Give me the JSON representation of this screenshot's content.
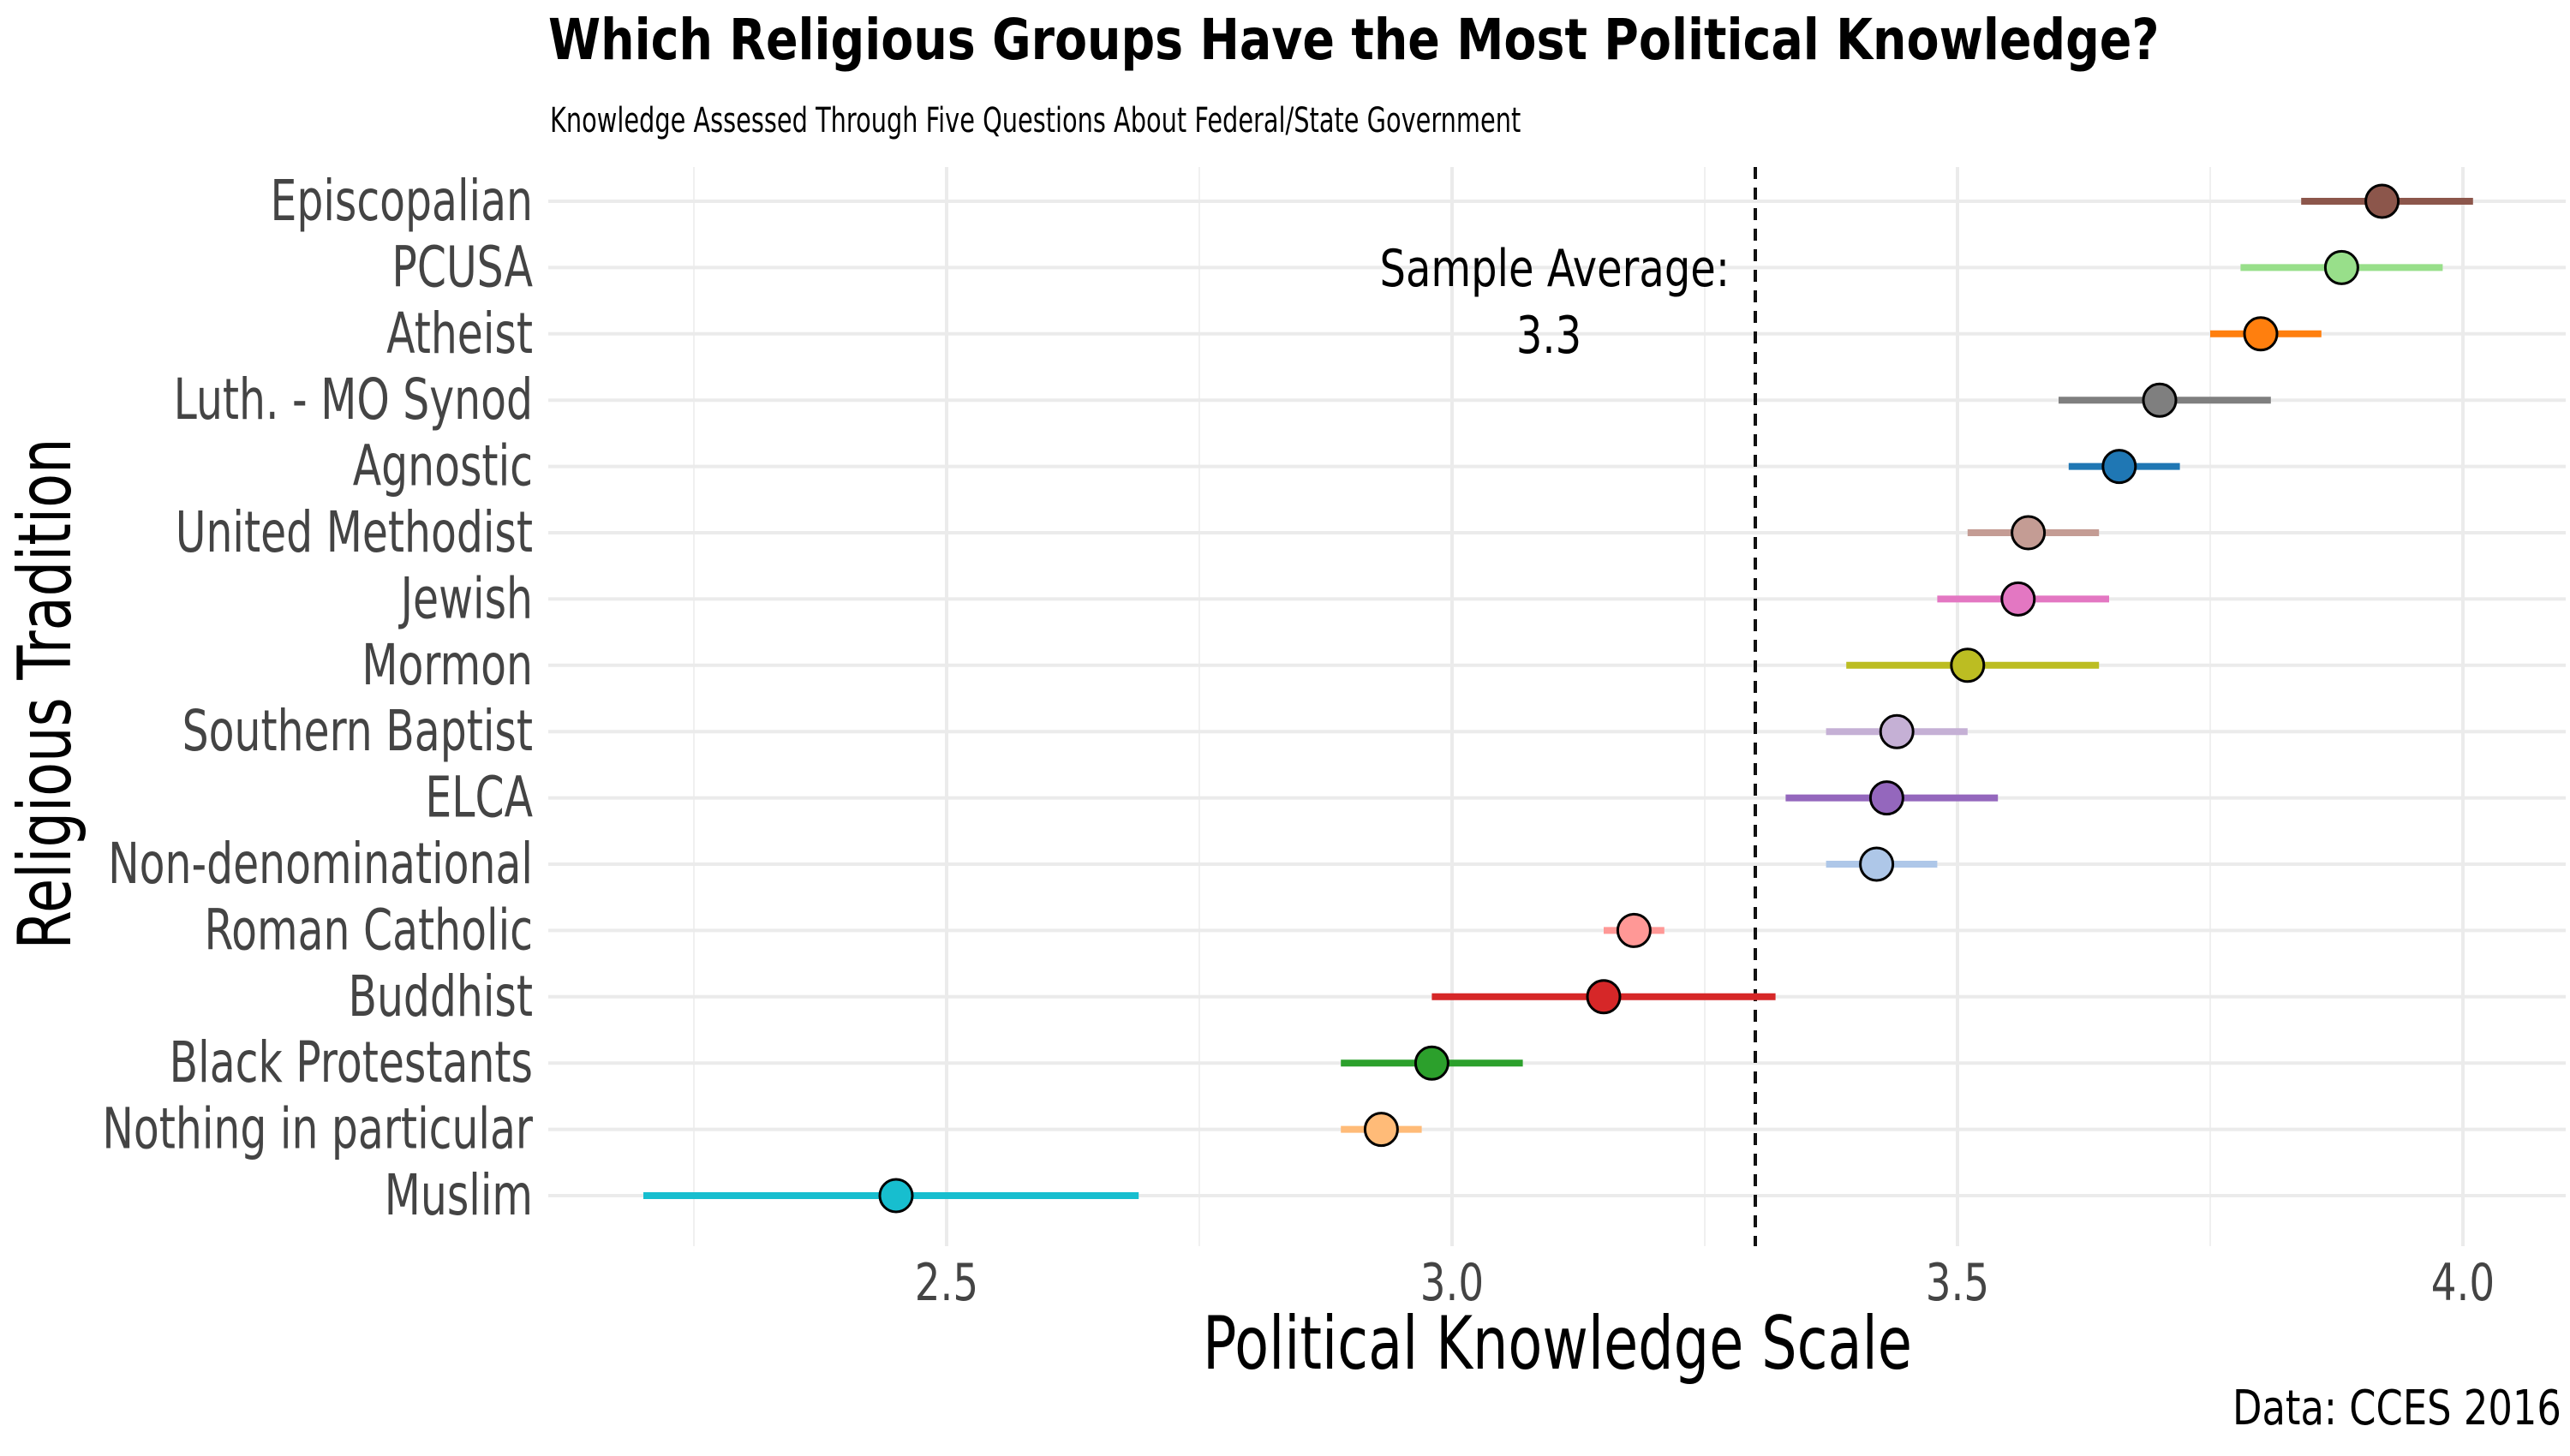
{
  "title": "Which Religious Groups Have the Most Political Knowledge?",
  "subtitle": "Knowledge Assessed Through Five Questions About Federal/State Government",
  "caption": "Data: CCES 2016",
  "chart_data": {
    "type": "scatter",
    "xlabel": "Political Knowledge Scale",
    "ylabel": "Religious Tradition",
    "xlim": [
      2.1,
      4.1
    ],
    "x_ticks": [
      2.5,
      3.0,
      3.5,
      4.0
    ],
    "x_tick_labels": [
      "2.5",
      "3.0",
      "3.5",
      "4.0"
    ],
    "grid": true,
    "legend": "none",
    "reference_line": {
      "value": 3.3,
      "style": "dashed",
      "label_line1": "Sample Average:",
      "label_line2": "3.3"
    },
    "categories": [
      "Episcopalian",
      "PCUSA",
      "Atheist",
      "Luth. - MO Synod",
      "Agnostic",
      "United Methodist",
      "Jewish",
      "Mormon",
      "Southern Baptist",
      "ELCA",
      "Non-denominational",
      "Roman Catholic",
      "Buddhist",
      "Black Protestants",
      "Nothing in particular",
      "Muslim"
    ],
    "points": [
      {
        "label": "Episcopalian",
        "mean": 3.92,
        "low": 3.84,
        "high": 4.01,
        "color": "#8c564b"
      },
      {
        "label": "PCUSA",
        "mean": 3.88,
        "low": 3.78,
        "high": 3.98,
        "color": "#98df8a"
      },
      {
        "label": "Atheist",
        "mean": 3.8,
        "low": 3.75,
        "high": 3.86,
        "color": "#ff7f0e"
      },
      {
        "label": "Luth. - MO Synod",
        "mean": 3.7,
        "low": 3.6,
        "high": 3.81,
        "color": "#7f7f7f"
      },
      {
        "label": "Agnostic",
        "mean": 3.66,
        "low": 3.61,
        "high": 3.72,
        "color": "#1f77b4"
      },
      {
        "label": "United Methodist",
        "mean": 3.57,
        "low": 3.51,
        "high": 3.64,
        "color": "#c49c94"
      },
      {
        "label": "Jewish",
        "mean": 3.56,
        "low": 3.48,
        "high": 3.65,
        "color": "#e377c2"
      },
      {
        "label": "Mormon",
        "mean": 3.51,
        "low": 3.39,
        "high": 3.64,
        "color": "#bcbd22"
      },
      {
        "label": "Southern Baptist",
        "mean": 3.44,
        "low": 3.37,
        "high": 3.51,
        "color": "#c5b0d5"
      },
      {
        "label": "ELCA",
        "mean": 3.43,
        "low": 3.33,
        "high": 3.54,
        "color": "#9467bd"
      },
      {
        "label": "Non-denominational",
        "mean": 3.42,
        "low": 3.37,
        "high": 3.48,
        "color": "#aec7e8"
      },
      {
        "label": "Roman Catholic",
        "mean": 3.18,
        "low": 3.15,
        "high": 3.21,
        "color": "#ff9896"
      },
      {
        "label": "Buddhist",
        "mean": 3.15,
        "low": 2.98,
        "high": 3.32,
        "color": "#d62728"
      },
      {
        "label": "Black Protestants",
        "mean": 2.98,
        "low": 2.89,
        "high": 3.07,
        "color": "#2ca02c"
      },
      {
        "label": "Nothing in particular",
        "mean": 2.93,
        "low": 2.89,
        "high": 2.97,
        "color": "#ffbb78"
      },
      {
        "label": "Muslim",
        "mean": 2.45,
        "low": 2.2,
        "high": 2.69,
        "color": "#17becf"
      }
    ]
  }
}
